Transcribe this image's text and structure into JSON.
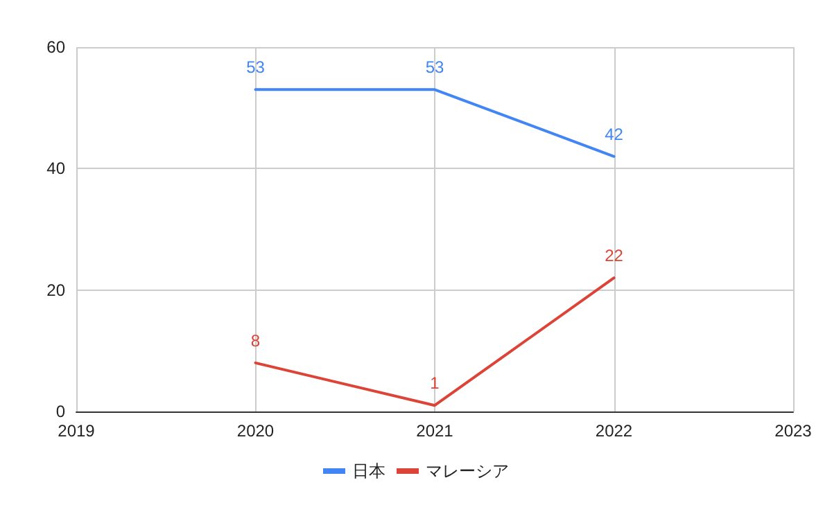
{
  "chart_data": {
    "type": "line",
    "x": [
      2020,
      2021,
      2022
    ],
    "series": [
      {
        "name": "日本",
        "color": "#4285f4",
        "values": [
          53,
          53,
          42
        ]
      },
      {
        "name": "マレーシア",
        "color": "#db4437",
        "values": [
          8,
          1,
          22
        ]
      }
    ],
    "xlim": [
      2019,
      2023
    ],
    "xticks": [
      2019,
      2020,
      2021,
      2022,
      2023
    ],
    "ylim": [
      0,
      60
    ],
    "yticks": [
      0,
      20,
      40,
      60
    ],
    "grid": true,
    "legend": "bottom",
    "data_labels": true,
    "marker": "none",
    "line_style": "solid"
  }
}
